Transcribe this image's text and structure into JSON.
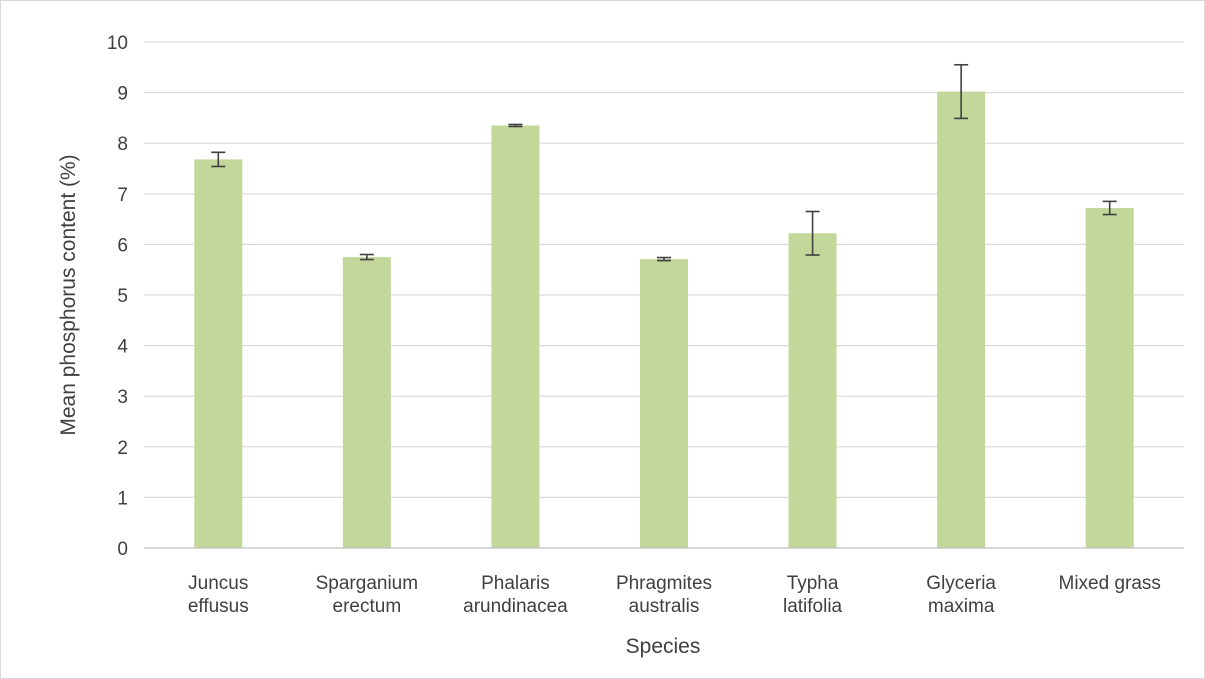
{
  "chart_data": {
    "type": "bar",
    "title": "",
    "xlabel": "Species",
    "ylabel": "Mean phosphorus content (%)",
    "ylim": [
      0,
      10
    ],
    "yticks": [
      0,
      1,
      2,
      3,
      4,
      5,
      6,
      7,
      8,
      9,
      10
    ],
    "grid": true,
    "legend": "none",
    "bar_color": "#c4d79b",
    "categories": [
      [
        "Juncus",
        "effusus"
      ],
      [
        "Sparganium",
        "erectum"
      ],
      [
        "Phalaris",
        "arundinacea"
      ],
      [
        "Phragmites",
        "australis"
      ],
      [
        "Typha",
        "latifolia"
      ],
      [
        "Glyceria",
        "maxima"
      ],
      [
        "Mixed grass"
      ]
    ],
    "values": [
      7.68,
      5.75,
      8.35,
      5.71,
      6.22,
      9.02,
      6.72
    ],
    "errors": [
      0.14,
      0.05,
      0.02,
      0.03,
      0.43,
      0.53,
      0.13
    ]
  }
}
